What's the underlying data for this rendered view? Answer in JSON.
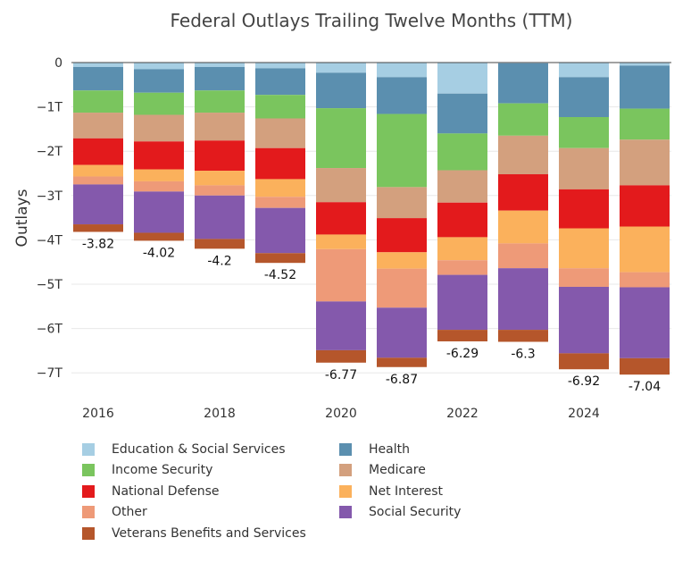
{
  "chart_data": {
    "type": "bar",
    "stacked": true,
    "title": "Federal Outlays Trailing Twelve Months (TTM)",
    "xlabel": "",
    "ylabel": "Outlays",
    "ylim": [
      -7.2,
      0
    ],
    "y_ticks": [
      {
        "value": 0,
        "label": "0"
      },
      {
        "value": -1,
        "label": "−1T"
      },
      {
        "value": -2,
        "label": "−2T"
      },
      {
        "value": -3,
        "label": "−3T"
      },
      {
        "value": -4,
        "label": "−4T"
      },
      {
        "value": -5,
        "label": "−5T"
      },
      {
        "value": -6,
        "label": "−6T"
      },
      {
        "value": -7,
        "label": "−7T"
      }
    ],
    "x_ticks": [
      {
        "value": 2016,
        "label": "2016"
      },
      {
        "value": 2018,
        "label": "2018"
      },
      {
        "value": 2020,
        "label": "2020"
      },
      {
        "value": 2022,
        "label": "2022"
      },
      {
        "value": 2024,
        "label": "2024"
      }
    ],
    "grid": true,
    "legend_position": "bottom",
    "x": [
      2016,
      2017,
      2018,
      2019,
      2020,
      2021,
      2022,
      2023,
      2024,
      2025
    ],
    "totals": [
      -3.82,
      -4.02,
      -4.2,
      -4.52,
      -6.77,
      -6.87,
      -6.29,
      -6.3,
      -6.92,
      -7.04
    ],
    "total_labels": [
      "-3.82",
      "-4.02",
      "-4.2",
      "-4.52",
      "-6.77",
      "-6.87",
      "-6.29",
      "-6.3",
      "-6.92",
      "-7.04"
    ],
    "series": [
      {
        "name": "Education & Social Services",
        "color": "#a6cee3",
        "values": [
          -0.1,
          -0.15,
          -0.1,
          -0.13,
          -0.23,
          -0.33,
          -0.7,
          -0.02,
          -0.33,
          -0.07
        ]
      },
      {
        "name": "Health",
        "color": "#5b8faf",
        "values": [
          -0.53,
          -0.53,
          -0.53,
          -0.6,
          -0.8,
          -0.83,
          -0.9,
          -0.9,
          -0.9,
          -0.97
        ]
      },
      {
        "name": "Income Security",
        "color": "#7ac55e",
        "values": [
          -0.5,
          -0.5,
          -0.5,
          -0.53,
          -1.35,
          -1.65,
          -0.83,
          -0.73,
          -0.7,
          -0.7
        ]
      },
      {
        "name": "Medicare",
        "color": "#d3a07e",
        "values": [
          -0.58,
          -0.6,
          -0.63,
          -0.67,
          -0.77,
          -0.7,
          -0.73,
          -0.87,
          -0.93,
          -1.03
        ]
      },
      {
        "name": "National Defense",
        "color": "#e31a1c",
        "values": [
          -0.6,
          -0.63,
          -0.68,
          -0.7,
          -0.73,
          -0.77,
          -0.78,
          -0.82,
          -0.88,
          -0.93
        ]
      },
      {
        "name": "Net Interest",
        "color": "#fbb15c",
        "values": [
          -0.26,
          -0.27,
          -0.33,
          -0.4,
          -0.33,
          -0.37,
          -0.52,
          -0.74,
          -0.9,
          -1.03
        ]
      },
      {
        "name": "Other",
        "color": "#ee9a78",
        "values": [
          -0.18,
          -0.23,
          -0.23,
          -0.25,
          -1.18,
          -0.88,
          -0.33,
          -0.56,
          -0.42,
          -0.34
        ]
      },
      {
        "name": "Social Security",
        "color": "#8459ac",
        "values": [
          -0.9,
          -0.93,
          -0.98,
          -1.02,
          -1.1,
          -1.13,
          -1.24,
          -1.39,
          -1.5,
          -1.6
        ]
      },
      {
        "name": "Veterans Benefits and Services",
        "color": "#b5562b",
        "values": [
          -0.17,
          -0.18,
          -0.22,
          -0.22,
          -0.28,
          -0.21,
          -0.26,
          -0.27,
          -0.36,
          -0.37
        ]
      }
    ]
  },
  "legend": {
    "rows": [
      [
        {
          "label": "Education & Social Services",
          "color": "#a6cee3"
        },
        {
          "label": "Health",
          "color": "#5b8faf"
        }
      ],
      [
        {
          "label": "Income Security",
          "color": "#7ac55e"
        },
        {
          "label": "Medicare",
          "color": "#d3a07e"
        }
      ],
      [
        {
          "label": "National Defense",
          "color": "#e31a1c"
        },
        {
          "label": "Net Interest",
          "color": "#fbb15c"
        }
      ],
      [
        {
          "label": "Other",
          "color": "#ee9a78"
        },
        {
          "label": "Social Security",
          "color": "#8459ac"
        }
      ],
      [
        {
          "label": "Veterans Benefits and Services",
          "color": "#b5562b"
        }
      ]
    ]
  }
}
